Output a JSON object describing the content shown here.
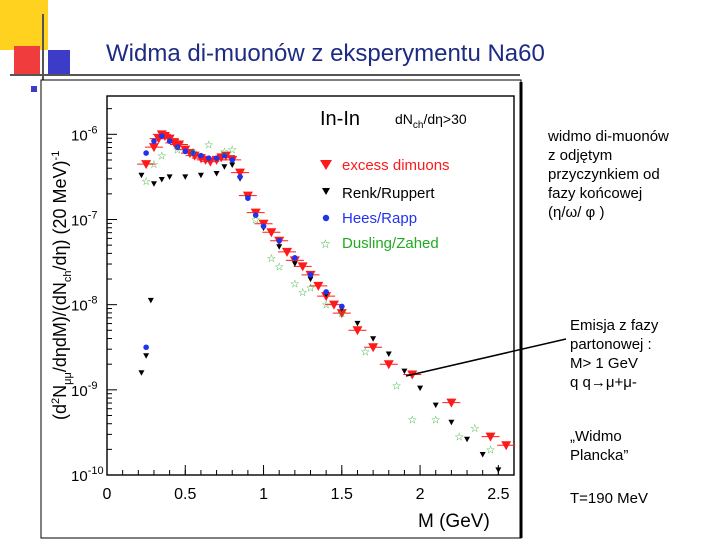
{
  "slide": {
    "title": "Widma di-muonów z eksperymentu Na60",
    "note1": [
      "widmo di-muonów",
      "z odjętym",
      "przyczynkiem od",
      "fazy końcowej",
      "(η/ω/ φ )"
    ],
    "note2": [
      "Emisja z fazy",
      "partonowej :",
      "M> 1 GeV",
      "q q→μ+μ-"
    ],
    "note3": [
      "„Widmo",
      "Plancka”"
    ],
    "note4": "T=190 MeV",
    "colors": {
      "title": "#1d2b84",
      "accent_yellow": "#ffd21f",
      "accent_red": "#f03c3c",
      "accent_blue": "#3c3cc8"
    }
  },
  "chart_data": {
    "type": "scatter",
    "title": "In-In",
    "subtitle": "dN_ch/dη>30",
    "xlabel": "M (GeV)",
    "ylabel": "(d²N_μμ/dηdM)/(dN_ch/dη) (20 MeV)⁻¹",
    "xlim": [
      0,
      2.6
    ],
    "ylim_log10": [
      -10,
      -5.55
    ],
    "x_ticks": [
      {
        "v": 0,
        "label": "0"
      },
      {
        "v": 0.5,
        "label": "0.5"
      },
      {
        "v": 1,
        "label": "1"
      },
      {
        "v": 1.5,
        "label": "1.5"
      },
      {
        "v": 2,
        "label": "2"
      },
      {
        "v": 2.5,
        "label": "2.5"
      }
    ],
    "y_ticks": [
      {
        "v": -10,
        "label": "10",
        "exp": "-10"
      },
      {
        "v": -9,
        "label": "10",
        "exp": "-9"
      },
      {
        "v": -8,
        "label": "10",
        "exp": "-8"
      },
      {
        "v": -7,
        "label": "10",
        "exp": "-7"
      },
      {
        "v": -6,
        "label": "10",
        "exp": "-6"
      }
    ],
    "legend": "top-right",
    "series": [
      {
        "name": "excess dimuons",
        "color": "#ff1a1a",
        "marker": "triangle-down",
        "points": [
          [
            0.25,
            -6.35
          ],
          [
            0.3,
            -6.15
          ],
          [
            0.33,
            -6.05
          ],
          [
            0.35,
            -6.0
          ],
          [
            0.37,
            -6.02
          ],
          [
            0.4,
            -6.05
          ],
          [
            0.43,
            -6.1
          ],
          [
            0.46,
            -6.12
          ],
          [
            0.5,
            -6.18
          ],
          [
            0.53,
            -6.22
          ],
          [
            0.56,
            -6.25
          ],
          [
            0.6,
            -6.28
          ],
          [
            0.63,
            -6.3
          ],
          [
            0.66,
            -6.32
          ],
          [
            0.7,
            -6.3
          ],
          [
            0.73,
            -6.27
          ],
          [
            0.76,
            -6.25
          ],
          [
            0.8,
            -6.3
          ],
          [
            0.85,
            -6.45
          ],
          [
            0.9,
            -6.72
          ],
          [
            0.95,
            -6.92
          ],
          [
            1.0,
            -7.05
          ],
          [
            1.05,
            -7.15
          ],
          [
            1.1,
            -7.25
          ],
          [
            1.15,
            -7.38
          ],
          [
            1.2,
            -7.48
          ],
          [
            1.25,
            -7.55
          ],
          [
            1.3,
            -7.65
          ],
          [
            1.35,
            -7.78
          ],
          [
            1.4,
            -7.9
          ],
          [
            1.45,
            -8.0
          ],
          [
            1.5,
            -8.1
          ],
          [
            1.6,
            -8.3
          ],
          [
            1.7,
            -8.5
          ],
          [
            1.8,
            -8.7
          ],
          [
            1.95,
            -8.82
          ],
          [
            2.2,
            -9.15
          ],
          [
            2.45,
            -9.55
          ],
          [
            2.55,
            -9.65
          ]
        ]
      },
      {
        "name": "Renk/Ruppert",
        "color": "#000000",
        "marker": "triangle-down-small",
        "points": [
          [
            0.22,
            -6.48
          ],
          [
            0.3,
            -6.58
          ],
          [
            0.35,
            -6.53
          ],
          [
            0.4,
            -6.5
          ],
          [
            0.5,
            -6.5
          ],
          [
            0.6,
            -6.48
          ],
          [
            0.7,
            -6.46
          ],
          [
            0.75,
            -6.38
          ],
          [
            0.8,
            -6.36
          ],
          [
            0.85,
            -6.52
          ],
          [
            0.9,
            -6.75
          ],
          [
            1.0,
            -7.1
          ],
          [
            1.1,
            -7.32
          ],
          [
            1.2,
            -7.52
          ],
          [
            1.3,
            -7.7
          ],
          [
            1.4,
            -7.88
          ],
          [
            1.5,
            -8.05
          ],
          [
            1.6,
            -8.22
          ],
          [
            1.7,
            -8.4
          ],
          [
            1.8,
            -8.58
          ],
          [
            1.9,
            -8.78
          ],
          [
            2.0,
            -8.98
          ],
          [
            2.1,
            -9.18
          ],
          [
            2.2,
            -9.38
          ],
          [
            2.3,
            -9.58
          ],
          [
            2.4,
            -9.76
          ],
          [
            2.5,
            -9.94
          ],
          [
            0.28,
            -7.95
          ],
          [
            0.25,
            -8.6
          ],
          [
            0.22,
            -8.8
          ]
        ]
      },
      {
        "name": "Hees/Rapp",
        "color": "#2233ee",
        "marker": "circle",
        "points": [
          [
            0.25,
            -6.22
          ],
          [
            0.3,
            -6.08
          ],
          [
            0.35,
            -6.02
          ],
          [
            0.4,
            -6.08
          ],
          [
            0.45,
            -6.15
          ],
          [
            0.5,
            -6.2
          ],
          [
            0.55,
            -6.22
          ],
          [
            0.6,
            -6.25
          ],
          [
            0.65,
            -6.28
          ],
          [
            0.7,
            -6.28
          ],
          [
            0.75,
            -6.25
          ],
          [
            0.8,
            -6.3
          ],
          [
            0.85,
            -6.5
          ],
          [
            0.9,
            -6.75
          ],
          [
            0.95,
            -6.95
          ],
          [
            1.0,
            -7.08
          ],
          [
            1.1,
            -7.25
          ],
          [
            1.2,
            -7.45
          ],
          [
            1.3,
            -7.65
          ],
          [
            1.4,
            -7.85
          ],
          [
            1.5,
            -8.02
          ],
          [
            0.25,
            -8.5
          ]
        ]
      },
      {
        "name": "Dusling/Zahed",
        "color": "#22aa22",
        "marker": "star",
        "points": [
          [
            0.25,
            -6.55
          ],
          [
            0.3,
            -6.35
          ],
          [
            0.35,
            -6.25
          ],
          [
            0.45,
            -6.18
          ],
          [
            0.55,
            -6.2
          ],
          [
            0.65,
            -6.12
          ],
          [
            0.75,
            -6.2
          ],
          [
            0.8,
            -6.18
          ],
          [
            0.95,
            -7.0
          ],
          [
            1.05,
            -7.45
          ],
          [
            1.1,
            -7.55
          ],
          [
            1.2,
            -7.75
          ],
          [
            1.25,
            -7.85
          ],
          [
            1.3,
            -7.8
          ],
          [
            1.4,
            -8.0
          ],
          [
            1.5,
            -8.1
          ],
          [
            1.65,
            -8.55
          ],
          [
            1.85,
            -8.95
          ],
          [
            1.95,
            -9.35
          ],
          [
            2.1,
            -9.35
          ],
          [
            2.25,
            -9.55
          ],
          [
            2.35,
            -9.45
          ],
          [
            2.45,
            -9.7
          ]
        ]
      }
    ]
  }
}
